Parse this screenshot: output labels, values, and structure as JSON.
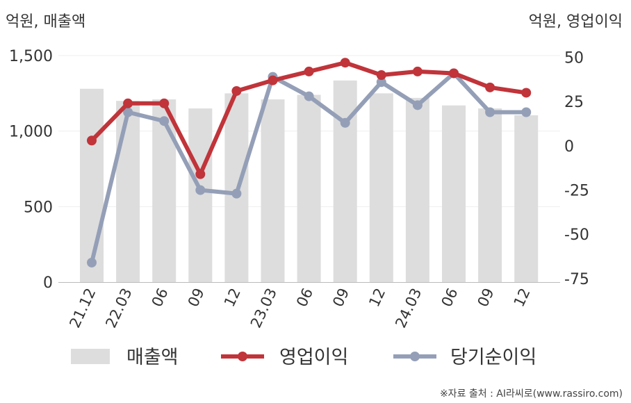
{
  "chart_data": {
    "type": "bar+line",
    "categories": [
      "21.12",
      "22.03",
      "06",
      "09",
      "12",
      "23.03",
      "06",
      "09",
      "12",
      "24.03",
      "06",
      "09",
      "12"
    ],
    "series": [
      {
        "name": "매출액",
        "type": "bar",
        "axis": "left",
        "color": "#dddddd",
        "values": [
          1280,
          1200,
          1210,
          1150,
          1250,
          1210,
          1240,
          1335,
          1250,
          1220,
          1170,
          1150,
          1105
        ]
      },
      {
        "name": "영업이익",
        "type": "line",
        "axis": "right",
        "color": "#c0343a",
        "values": [
          3,
          24,
          24,
          -16,
          31,
          37,
          42,
          47,
          40,
          42,
          41,
          33,
          30
        ]
      },
      {
        "name": "당기순이익",
        "type": "line",
        "axis": "right",
        "color": "#949fb7",
        "values": [
          -66,
          19,
          14,
          -25,
          -27,
          39,
          28,
          13,
          36,
          23,
          41,
          19,
          19
        ]
      }
    ],
    "left_axis": {
      "label": "억원, 매출액",
      "ylim": [
        0,
        1500
      ],
      "ticks": [
        "0",
        "500",
        "1,000",
        "1,500"
      ],
      "tick_values": [
        0,
        500,
        1000,
        1500
      ]
    },
    "right_axis": {
      "label": "억원, 영업이익",
      "ylim": [
        -77,
        51
      ],
      "ticks": [
        "-75",
        "-50",
        "-25",
        "0",
        "25",
        "50"
      ],
      "tick_values": [
        -75,
        -50,
        -25,
        0,
        25,
        50
      ]
    },
    "grid": true,
    "legend_position": "bottom"
  },
  "source_note": "※자료 출처 : AI라씨로(www.rassiro.com)"
}
